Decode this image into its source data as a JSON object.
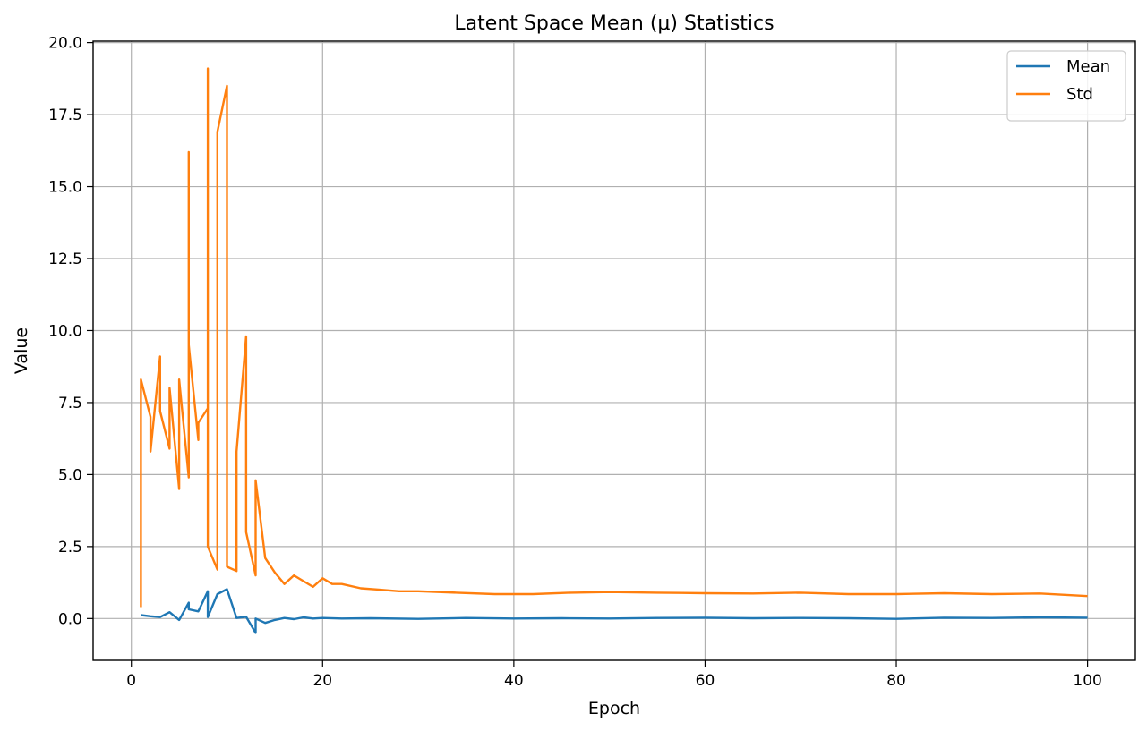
{
  "chart_data": {
    "type": "line",
    "title": "Latent Space Mean (μ) Statistics",
    "xlabel": "Epoch",
    "ylabel": "Value",
    "xlim": [
      -4,
      105
    ],
    "ylim": [
      -1.45,
      20.05
    ],
    "xticks": [
      0,
      20,
      40,
      60,
      80,
      100
    ],
    "yticks": [
      0.0,
      2.5,
      5.0,
      7.5,
      10.0,
      12.5,
      15.0,
      17.5,
      20.0
    ],
    "grid": true,
    "legend_position": "top-right",
    "series": [
      {
        "name": "Mean",
        "color": "#1f77b4",
        "x": [
          1,
          2,
          3,
          4,
          5,
          6,
          6,
          7,
          8,
          8,
          9,
          10,
          11,
          12,
          13,
          13,
          14,
          15,
          16,
          17,
          18,
          19,
          20,
          22,
          25,
          30,
          35,
          40,
          45,
          50,
          55,
          60,
          65,
          70,
          75,
          80,
          85,
          90,
          95,
          100
        ],
        "values": [
          0.12,
          0.08,
          0.05,
          0.22,
          -0.05,
          0.55,
          0.32,
          0.25,
          0.95,
          0.05,
          0.85,
          1.02,
          0.02,
          0.06,
          -0.5,
          0.0,
          -0.15,
          -0.05,
          0.02,
          -0.02,
          0.04,
          0.0,
          0.02,
          0.0,
          0.01,
          -0.01,
          0.02,
          0.0,
          0.01,
          0.0,
          0.02,
          0.03,
          0.01,
          0.02,
          0.01,
          -0.01,
          0.03,
          0.02,
          0.04,
          0.03
        ]
      },
      {
        "name": "Std",
        "color": "#ff7f0e",
        "x": [
          1,
          1,
          2,
          2,
          3,
          3,
          4,
          4,
          5,
          5,
          6,
          6,
          6,
          7,
          7,
          8,
          8,
          8,
          9,
          9,
          10,
          10,
          11,
          11,
          12,
          12,
          13,
          13,
          14,
          15,
          16,
          17,
          18,
          19,
          20,
          21,
          22,
          24,
          26,
          28,
          30,
          34,
          38,
          42,
          46,
          50,
          55,
          60,
          65,
          70,
          75,
          80,
          85,
          90,
          95,
          100
        ],
        "values": [
          0.4,
          8.3,
          7.0,
          5.8,
          9.1,
          7.2,
          5.9,
          8.0,
          4.5,
          8.3,
          4.9,
          16.2,
          9.5,
          6.2,
          6.8,
          7.3,
          19.1,
          2.5,
          1.7,
          16.9,
          18.5,
          1.8,
          1.65,
          5.8,
          9.8,
          3.0,
          1.5,
          4.8,
          2.1,
          1.6,
          1.2,
          1.5,
          1.3,
          1.1,
          1.4,
          1.2,
          1.2,
          1.05,
          1.0,
          0.95,
          0.95,
          0.9,
          0.85,
          0.85,
          0.9,
          0.92,
          0.9,
          0.88,
          0.87,
          0.9,
          0.85,
          0.85,
          0.88,
          0.85,
          0.87,
          0.78
        ]
      }
    ]
  }
}
